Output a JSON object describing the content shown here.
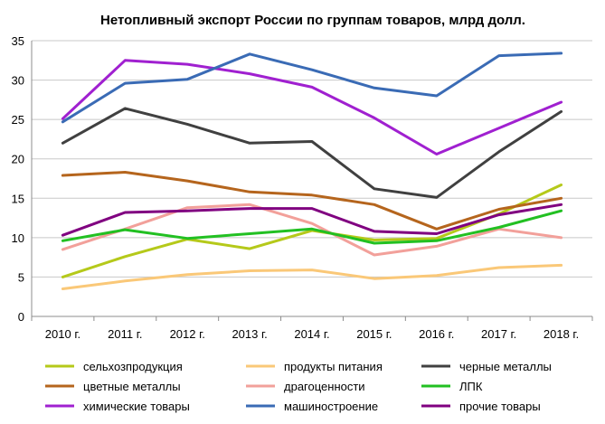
{
  "chart_data": {
    "type": "line",
    "title": "Нетопливный экспорт России по группам товаров, млрд долл.",
    "xlabel": "",
    "ylabel": "",
    "categories": [
      "2010 г.",
      "2011 г.",
      "2012 г.",
      "2013 г.",
      "2014 г.",
      "2015 г.",
      "2016 г.",
      "2017 г.",
      "2018 г."
    ],
    "ylim": [
      0,
      35
    ],
    "yticks": [
      0,
      5,
      10,
      15,
      20,
      25,
      30,
      35
    ],
    "grid": true,
    "legend_position": "bottom",
    "series": [
      {
        "name": "сельхозпродукция",
        "color": "#b5c91a",
        "values": [
          5.0,
          7.6,
          9.8,
          8.6,
          10.9,
          9.7,
          9.9,
          13.0,
          16.7
        ]
      },
      {
        "name": "продукты питания",
        "color": "#fac878",
        "values": [
          3.5,
          4.5,
          5.3,
          5.8,
          5.9,
          4.8,
          5.2,
          6.2,
          6.5
        ]
      },
      {
        "name": "черные металлы",
        "color": "#404040",
        "values": [
          22.0,
          26.4,
          24.4,
          22.0,
          22.2,
          16.2,
          15.1,
          20.9,
          26.0
        ]
      },
      {
        "name": "цветные металлы",
        "color": "#b5651d",
        "values": [
          17.9,
          18.3,
          17.2,
          15.8,
          15.4,
          14.2,
          11.1,
          13.6,
          15.0
        ]
      },
      {
        "name": "драгоценности",
        "color": "#f2a09a",
        "values": [
          8.5,
          11.1,
          13.8,
          14.2,
          11.8,
          7.8,
          8.9,
          11.1,
          10.0
        ]
      },
      {
        "name": "ЛПК",
        "color": "#22c022",
        "values": [
          9.6,
          11.0,
          9.9,
          10.5,
          11.1,
          9.3,
          9.6,
          11.3,
          13.4
        ]
      },
      {
        "name": "химические товары",
        "color": "#a020d0",
        "values": [
          25.1,
          32.5,
          32.0,
          30.8,
          29.1,
          25.2,
          20.6,
          23.9,
          27.2
        ]
      },
      {
        "name": "машиностроение",
        "color": "#3a6bb5",
        "values": [
          24.7,
          29.6,
          30.1,
          33.3,
          31.3,
          29.0,
          28.0,
          33.1,
          33.4
        ]
      },
      {
        "name": "прочие товары",
        "color": "#800080",
        "values": [
          10.3,
          13.2,
          13.4,
          13.7,
          13.7,
          10.8,
          10.5,
          12.9,
          14.2
        ]
      }
    ]
  }
}
